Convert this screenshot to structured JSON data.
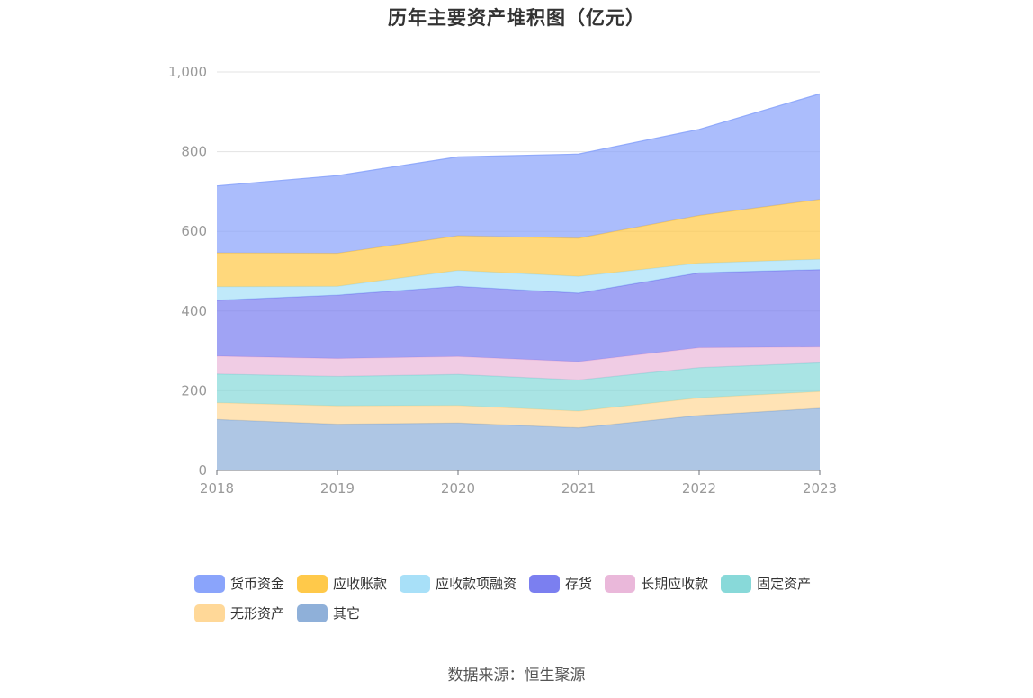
{
  "title": "历年主要资产堆积图（亿元）",
  "source": "数据来源：恒生聚源",
  "chart_data": {
    "type": "area",
    "stacked": true,
    "title": "历年主要资产堆积图（亿元）",
    "xlabel": "",
    "ylabel": "",
    "x": [
      "2018",
      "2019",
      "2020",
      "2021",
      "2022",
      "2023"
    ],
    "ylim": [
      0,
      1000
    ],
    "yticks": [
      0,
      200,
      400,
      600,
      800,
      1000
    ],
    "ytick_labels": [
      "0",
      "200",
      "400",
      "600",
      "800",
      "1,000"
    ],
    "grid": true,
    "legend_position": "bottom",
    "series": [
      {
        "name": "其它",
        "color": "#8fb0d9",
        "values": [
          128,
          116,
          119,
          107,
          138,
          156
        ]
      },
      {
        "name": "无形资产",
        "color": "#ffd898",
        "values": [
          42,
          46,
          44,
          42,
          44,
          42
        ]
      },
      {
        "name": "固定资产",
        "color": "#88d9d9",
        "values": [
          72,
          74,
          78,
          78,
          76,
          72
        ]
      },
      {
        "name": "长期应收款",
        "color": "#eab8da",
        "values": [
          45,
          45,
          45,
          46,
          50,
          40
        ]
      },
      {
        "name": "存货",
        "color": "#7b7ff0",
        "values": [
          140,
          159,
          176,
          172,
          188,
          194
        ]
      },
      {
        "name": "应收款项融资",
        "color": "#a8e0f8",
        "values": [
          34,
          22,
          40,
          42,
          24,
          26
        ]
      },
      {
        "name": "应收账款",
        "color": "#ffc94a",
        "values": [
          85,
          83,
          87,
          96,
          120,
          150
        ]
      },
      {
        "name": "货币资金",
        "color": "#8aa4fb",
        "values": [
          168,
          195,
          198,
          211,
          216,
          265
        ]
      }
    ]
  },
  "legend": [
    {
      "name": "货币资金",
      "color": "#8aa4fb"
    },
    {
      "name": "应收账款",
      "color": "#ffc94a"
    },
    {
      "name": "应收款项融资",
      "color": "#a8e0f8"
    },
    {
      "name": "存货",
      "color": "#7b7ff0"
    },
    {
      "name": "长期应收款",
      "color": "#eab8da"
    },
    {
      "name": "固定资产",
      "color": "#88d9d9"
    },
    {
      "name": "无形资产",
      "color": "#ffd898"
    },
    {
      "name": "其它",
      "color": "#8fb0d9"
    }
  ]
}
